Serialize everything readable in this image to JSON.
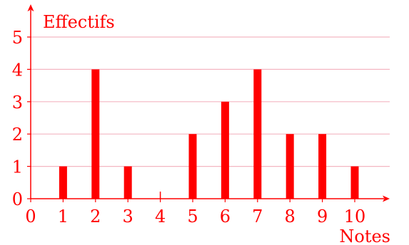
{
  "chart_data": {
    "type": "bar",
    "xlabel": "Notes",
    "ylabel": "Effectifs",
    "x_ticks": [
      "0",
      "1",
      "2",
      "3",
      "4",
      "5",
      "6",
      "7",
      "8",
      "9",
      "10"
    ],
    "y_ticks": [
      "0",
      "1",
      "2",
      "3",
      "4",
      "5"
    ],
    "categories": [
      1,
      2,
      3,
      4,
      5,
      6,
      7,
      8,
      9,
      10
    ],
    "values": [
      1,
      4,
      1,
      0,
      2,
      3,
      4,
      2,
      2,
      1
    ],
    "xlim": [
      0,
      11
    ],
    "ylim": [
      0,
      5.5
    ],
    "grid": "horizontal",
    "bar_color": "#ff0000",
    "grid_color": "#f4b6c2",
    "text_color": "#ff0000"
  }
}
